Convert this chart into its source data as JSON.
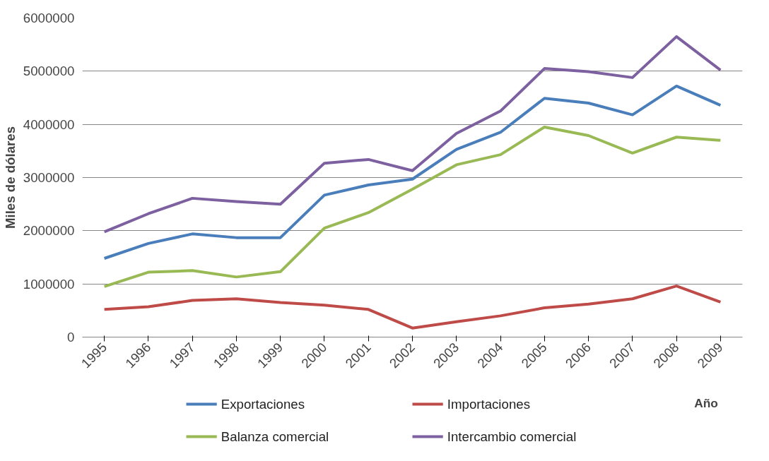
{
  "chart_data": {
    "type": "line",
    "ylabel": "Miles de dólares",
    "xlabel": "Año",
    "categories": [
      "1995",
      "1996",
      "1997",
      "1998",
      "1999",
      "2000",
      "2001",
      "2002",
      "2003",
      "2004",
      "2005",
      "2006",
      "2007",
      "2008",
      "2009"
    ],
    "series": [
      {
        "name": "Exportaciones",
        "color": "#4a7ebb",
        "values": [
          1480000,
          1760000,
          1940000,
          1870000,
          1870000,
          2670000,
          2860000,
          2970000,
          3530000,
          3850000,
          4490000,
          4400000,
          4180000,
          4720000,
          4360000
        ]
      },
      {
        "name": "Importaciones",
        "color": "#be4b48",
        "values": [
          520000,
          570000,
          690000,
          720000,
          650000,
          600000,
          520000,
          170000,
          290000,
          400000,
          550000,
          620000,
          720000,
          960000,
          660000
        ]
      },
      {
        "name": "Balanza comercial",
        "color": "#98b954",
        "values": [
          950000,
          1220000,
          1250000,
          1130000,
          1230000,
          2050000,
          2340000,
          2780000,
          3240000,
          3430000,
          3950000,
          3790000,
          3460000,
          3760000,
          3700000
        ]
      },
      {
        "name": "Intercambio comercial",
        "color": "#7d60a0",
        "values": [
          1980000,
          2320000,
          2610000,
          2550000,
          2500000,
          3270000,
          3340000,
          3130000,
          3830000,
          4250000,
          5050000,
          4990000,
          4880000,
          5650000,
          5020000
        ]
      }
    ],
    "ylim": [
      0,
      6000000
    ],
    "yticks": [
      0,
      1000000,
      2000000,
      3000000,
      4000000,
      5000000,
      6000000
    ],
    "grid": "y",
    "legend": "bottom",
    "line_style": "solid",
    "marker": "none"
  }
}
